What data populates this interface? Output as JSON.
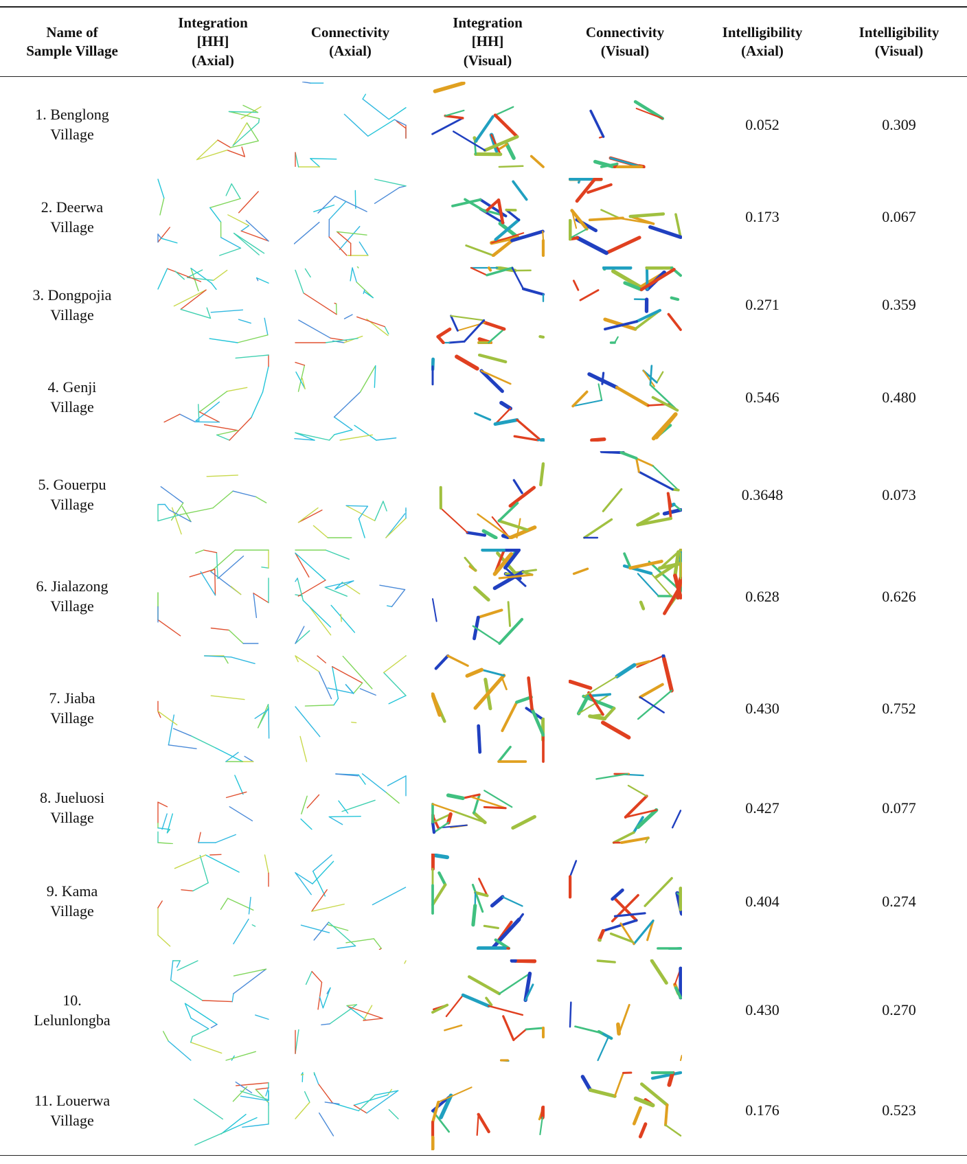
{
  "table": {
    "header": [
      [
        "Name of",
        "Sample Village"
      ],
      [
        "Integration",
        "[HH]",
        "(Axial)"
      ],
      [
        "Connectivity",
        "(Axial)"
      ],
      [
        "Integration",
        "[HH]",
        "(Visual)"
      ],
      [
        "Connectivity",
        "(Visual)"
      ],
      [
        "Intelligibility",
        "(Axial)"
      ],
      [
        "Intelligibility",
        "(Visual)"
      ]
    ],
    "rows": [
      {
        "name": [
          "1. Benglong",
          "Village"
        ],
        "axial": "0.052",
        "visual": "0.309"
      },
      {
        "name": [
          "2. Deerwa",
          "Village"
        ],
        "axial": "0.173",
        "visual": "0.067"
      },
      {
        "name": [
          "3. Dongpojia",
          "Village"
        ],
        "axial": "0.271",
        "visual": "0.359"
      },
      {
        "name": [
          "4. Genji",
          "Village"
        ],
        "axial": "0.546",
        "visual": "0.480"
      },
      {
        "name": [
          "5. Gouerpu",
          "Village"
        ],
        "axial": "0.3648",
        "visual": "0.073"
      },
      {
        "name": [
          "6. Jialazong",
          "Village"
        ],
        "axial": "0.628",
        "visual": "0.626"
      },
      {
        "name": [
          "7. Jiaba",
          "Village"
        ],
        "axial": "0.430",
        "visual": "0.752"
      },
      {
        "name": [
          "8. Jueluosi",
          "Village"
        ],
        "axial": "0.427",
        "visual": "0.077"
      },
      {
        "name": [
          "9. Kama",
          "Village"
        ],
        "axial": "0.404",
        "visual": "0.274"
      },
      {
        "name": [
          "10.",
          "Lelunlongba"
        ],
        "axial": "0.430",
        "visual": "0.270"
      },
      {
        "name": [
          "11. Louerwa",
          "Village"
        ],
        "axial": "0.176",
        "visual": "0.523"
      }
    ]
  }
}
